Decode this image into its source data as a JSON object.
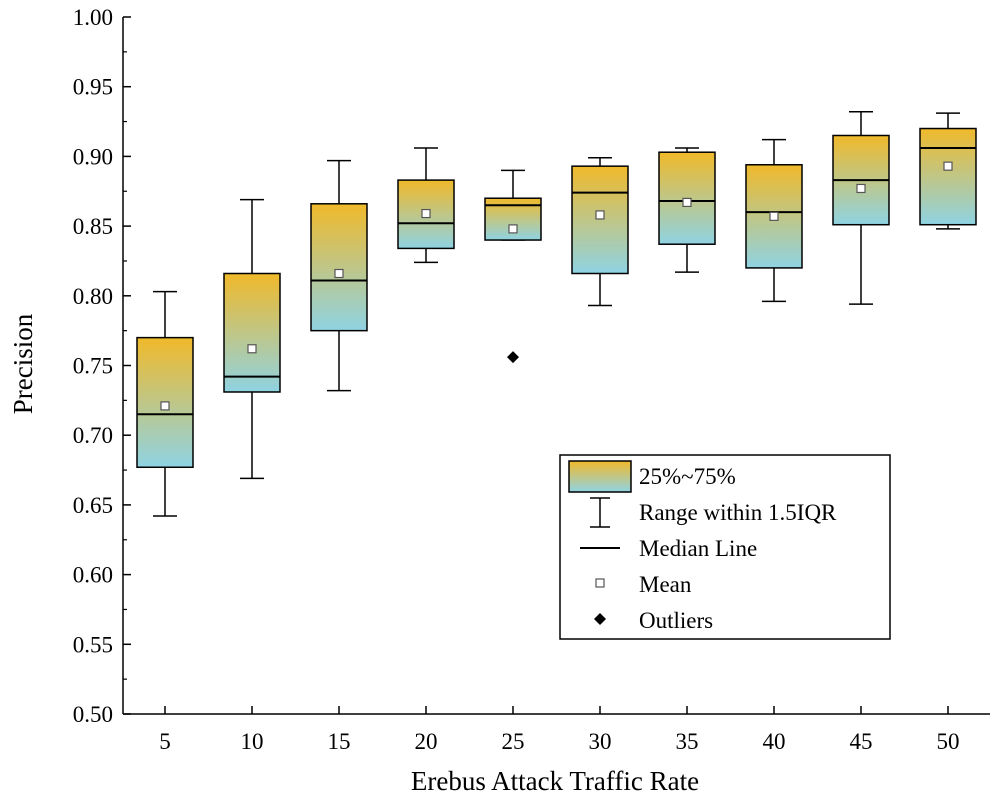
{
  "chart_data": {
    "type": "boxplot",
    "title": "",
    "xlabel": "Erebus Attack Traffic Rate",
    "ylabel": "Precision",
    "ylim": [
      0.5,
      1.0
    ],
    "y_ticks": [
      "0.50",
      "0.55",
      "0.60",
      "0.65",
      "0.70",
      "0.75",
      "0.80",
      "0.85",
      "0.90",
      "0.95",
      "1.00"
    ],
    "categories": [
      "5",
      "10",
      "15",
      "20",
      "25",
      "30",
      "35",
      "40",
      "45",
      "50"
    ],
    "boxes": [
      {
        "label": "5",
        "whisker_low": 0.642,
        "q1": 0.677,
        "median": 0.715,
        "q3": 0.77,
        "whisker_high": 0.803,
        "mean": 0.721,
        "outliers": []
      },
      {
        "label": "10",
        "whisker_low": 0.669,
        "q1": 0.731,
        "median": 0.742,
        "q3": 0.816,
        "whisker_high": 0.869,
        "mean": 0.762,
        "outliers": []
      },
      {
        "label": "15",
        "whisker_low": 0.732,
        "q1": 0.775,
        "median": 0.811,
        "q3": 0.866,
        "whisker_high": 0.897,
        "mean": 0.816,
        "outliers": []
      },
      {
        "label": "20",
        "whisker_low": 0.824,
        "q1": 0.834,
        "median": 0.852,
        "q3": 0.883,
        "whisker_high": 0.906,
        "mean": 0.859,
        "outliers": []
      },
      {
        "label": "25",
        "whisker_low": 0.84,
        "q1": 0.84,
        "median": 0.865,
        "q3": 0.87,
        "whisker_high": 0.89,
        "mean": 0.848,
        "outliers": [
          0.756
        ]
      },
      {
        "label": "30",
        "whisker_low": 0.793,
        "q1": 0.816,
        "median": 0.874,
        "q3": 0.893,
        "whisker_high": 0.899,
        "mean": 0.858,
        "outliers": []
      },
      {
        "label": "35",
        "whisker_low": 0.817,
        "q1": 0.837,
        "median": 0.868,
        "q3": 0.903,
        "whisker_high": 0.906,
        "mean": 0.867,
        "outliers": []
      },
      {
        "label": "40",
        "whisker_low": 0.796,
        "q1": 0.82,
        "median": 0.86,
        "q3": 0.894,
        "whisker_high": 0.912,
        "mean": 0.857,
        "outliers": []
      },
      {
        "label": "45",
        "whisker_low": 0.794,
        "q1": 0.851,
        "median": 0.883,
        "q3": 0.915,
        "whisker_high": 0.932,
        "mean": 0.877,
        "outliers": []
      },
      {
        "label": "50",
        "whisker_low": 0.848,
        "q1": 0.851,
        "median": 0.906,
        "q3": 0.92,
        "whisker_high": 0.931,
        "mean": 0.893,
        "outliers": []
      }
    ],
    "box_gradient": {
      "top": "#f0b92a",
      "bottom": "#8fd3e3"
    },
    "legend": {
      "position": "bottom-right",
      "entries": [
        {
          "symbol": "box",
          "label": "25%~75%"
        },
        {
          "symbol": "whisker",
          "label": "Range within 1.5IQR"
        },
        {
          "symbol": "median",
          "label": "Median Line"
        },
        {
          "symbol": "mean",
          "label": "Mean"
        },
        {
          "symbol": "outlier",
          "label": "Outliers"
        }
      ]
    }
  }
}
